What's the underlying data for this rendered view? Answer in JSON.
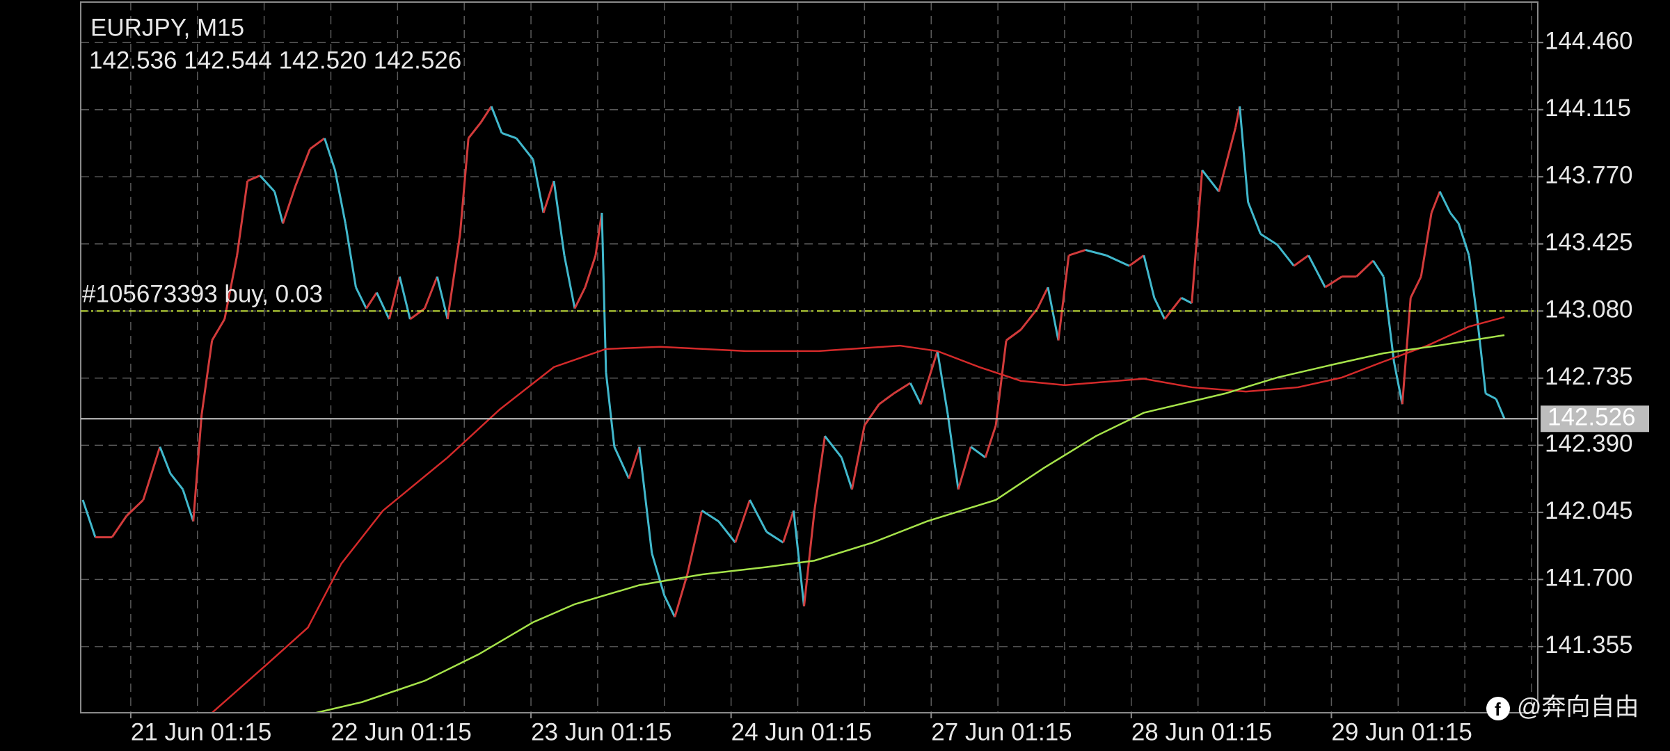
{
  "chart_data": {
    "type": "candles",
    "title": "EURJPY, M15",
    "subtitle": "142.536 142.544 142.520 142.526",
    "xlim": [
      0,
      699
    ],
    "xticks": [
      {
        "value": 24,
        "label": "21 Jun 01:15"
      },
      {
        "value": 120,
        "label": "22 Jun 01:15"
      },
      {
        "value": 216,
        "label": "23 Jun 01:15"
      },
      {
        "value": 312,
        "label": "24 Jun 01:15"
      },
      {
        "value": 408,
        "label": "27 Jun 01:15"
      },
      {
        "value": 504,
        "label": "28 Jun 01:15"
      },
      {
        "value": 600,
        "label": "29 Jun 01:15"
      }
    ],
    "ylim": [
      141.015,
      144.668
    ],
    "yticks": [
      {
        "value": 144.46,
        "label": "144.460"
      },
      144.115,
      {
        "value": 143.77,
        "label": "143.770"
      },
      143.425,
      {
        "value": 143.08,
        "label": "143.080"
      },
      142.735,
      {
        "value": 142.39,
        "label": "142.390"
      },
      142.045,
      {
        "value": 141.7,
        "label": "141.700"
      },
      141.355
    ],
    "grid": true,
    "up_color": "#d23b3b",
    "down_color": "#41b8cc",
    "series": [
      {
        "x": [
          1,
          7,
          15,
          22,
          30,
          38,
          43,
          49,
          54,
          58,
          63,
          69,
          75,
          80,
          86,
          93,
          97,
          103,
          110,
          117,
          122,
          127,
          132,
          137,
          142,
          148,
          153,
          158,
          165,
          171,
          176,
          182,
          186,
          192,
          197,
          202,
          209,
          217,
          222,
          227,
          232,
          237,
          242,
          247,
          250,
          252,
          256,
          263,
          268,
          274,
          280,
          285,
          291,
          298,
          306,
          314,
          321,
          329,
          337,
          342,
          347,
          352,
          357,
          365,
          370,
          376,
          383,
          390,
          398,
          403,
          411,
          416,
          421,
          427,
          434,
          439,
          444,
          451,
          459,
          464,
          469,
          474,
          482,
          492,
          503,
          510,
          515,
          520,
          528,
          533,
          538,
          546,
          554,
          556,
          560,
          566,
          574,
          582,
          589,
          597,
          605,
          612,
          620,
          625,
          630,
          634,
          638,
          643,
          648,
          652,
          657,
          661,
          666,
          670,
          674,
          679,
          683
        ],
        "values": [
          142.109,
          141.917,
          141.917,
          142.027,
          142.109,
          142.382,
          142.245,
          142.163,
          141.999,
          142.546,
          142.929,
          143.038,
          143.366,
          143.749,
          143.776,
          143.694,
          143.53,
          143.722,
          143.913,
          143.968,
          143.804,
          143.53,
          143.202,
          143.093,
          143.175,
          143.038,
          143.257,
          143.038,
          143.093,
          143.257,
          143.038,
          143.476,
          143.968,
          144.05,
          144.132,
          143.995,
          143.968,
          143.859,
          143.585,
          143.749,
          143.366,
          143.093,
          143.202,
          143.366,
          143.585,
          142.765,
          142.382,
          142.218,
          142.382,
          141.835,
          141.617,
          141.507,
          141.726,
          142.054,
          141.999,
          141.89,
          142.109,
          141.945,
          141.89,
          142.054,
          141.562,
          142.054,
          142.437,
          142.327,
          142.163,
          142.492,
          142.601,
          142.656,
          142.71,
          142.601,
          142.874,
          142.546,
          142.163,
          142.382,
          142.327,
          142.492,
          142.929,
          142.984,
          143.093,
          143.202,
          142.929,
          143.366,
          143.394,
          143.366,
          143.312,
          143.366,
          143.148,
          143.038,
          143.148,
          143.12,
          143.804,
          143.694,
          144.023,
          144.132,
          143.64,
          143.476,
          143.421,
          143.312,
          143.366,
          143.202,
          143.257,
          143.257,
          143.339,
          143.257,
          142.82,
          142.601,
          143.148,
          143.257,
          143.585,
          143.694,
          143.585,
          143.53,
          143.366,
          143.038,
          142.656,
          142.628,
          142.526
        ]
      },
      {
        "color": "#d42a2a",
        "x": [
          63,
          89,
          109,
          125,
          145,
          176,
          201,
          227,
          252,
          278,
          319,
          354,
          393,
          411,
          431,
          451,
          472,
          510,
          533,
          559,
          584,
          605,
          625,
          646,
          666,
          683
        ],
        "values": [
          141.015,
          141.261,
          141.453,
          141.781,
          142.054,
          142.327,
          142.574,
          142.792,
          142.885,
          142.896,
          142.874,
          142.874,
          142.902,
          142.874,
          142.792,
          142.721,
          142.699,
          142.732,
          142.688,
          142.666,
          142.688,
          142.738,
          142.82,
          142.902,
          143.0,
          143.049
        ]
      },
      {
        "color": "#a6e34a",
        "x": [
          113,
          135,
          165,
          191,
          217,
          237,
          268,
          298,
          329,
          352,
          380,
          406,
          439,
          462,
          487,
          510,
          549,
          574,
          600,
          625,
          651,
          683
        ],
        "values": [
          141.015,
          141.07,
          141.179,
          141.316,
          141.48,
          141.573,
          141.671,
          141.726,
          141.764,
          141.797,
          141.89,
          141.999,
          142.109,
          142.273,
          142.437,
          142.557,
          142.656,
          142.738,
          142.803,
          142.863,
          142.902,
          142.956
        ]
      }
    ],
    "order": {
      "label": "#105673393 buy, 0.03",
      "value": 143.08,
      "color": "#c6e23c"
    },
    "current_price": 142.526,
    "watermark": "@奔向自由"
  }
}
